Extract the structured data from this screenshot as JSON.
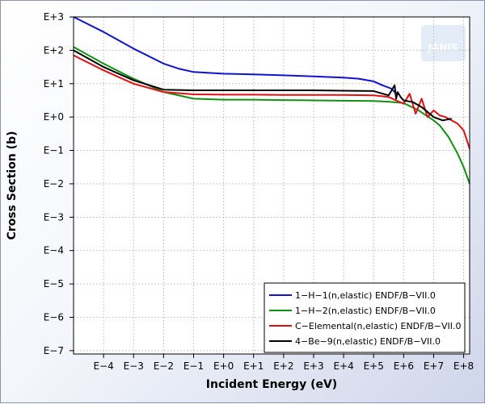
{
  "chart_data": {
    "type": "line",
    "title": "",
    "xlabel": "Incident Energy (eV)",
    "ylabel": "Cross Section (b)",
    "xscale": "log",
    "yscale": "log",
    "xlim_log10": [
      -5,
      8.2
    ],
    "ylim_log10": [
      -7.1,
      3
    ],
    "x_tick_labels": [
      "E−4",
      "E−3",
      "E−2",
      "E−1",
      "E+0",
      "E+1",
      "E+2",
      "E+3",
      "E+4",
      "E+5",
      "E+6",
      "E+7",
      "E+8"
    ],
    "x_tick_exponents": [
      -4,
      -3,
      -2,
      -1,
      0,
      1,
      2,
      3,
      4,
      5,
      6,
      7,
      8
    ],
    "y_tick_labels": [
      "E+3",
      "E+2",
      "E+1",
      "E+0",
      "E−1",
      "E−2",
      "E−3",
      "E−4",
      "E−5",
      "E−6",
      "E−7"
    ],
    "y_tick_exponents": [
      3,
      2,
      1,
      0,
      -1,
      -2,
      -3,
      -4,
      -5,
      -6,
      -7
    ],
    "grid": true,
    "legend_position": "bottom-right",
    "watermark": "JANIS",
    "series": [
      {
        "name": "1−H−1(n,elastic) ENDF/B−VII.0",
        "color": "#1010d0",
        "x_log10": [
          -5,
          -4,
          -3,
          -2,
          -1.5,
          -1,
          0,
          1,
          2,
          3,
          4,
          4.5,
          5,
          5.3,
          5.6,
          5.8
        ],
        "y_log10": [
          3,
          2.55,
          2.05,
          1.6,
          1.45,
          1.35,
          1.3,
          1.28,
          1.25,
          1.22,
          1.18,
          1.15,
          1.07,
          0.95,
          0.85,
          0.65
        ]
      },
      {
        "name": "1−H−2(n,elastic) ENDF/B−VII.0",
        "color": "#109010",
        "x_log10": [
          -5,
          -4,
          -3,
          -2,
          -1,
          0,
          1,
          2,
          3,
          4,
          5,
          5.5,
          6,
          6.5,
          7,
          7.2,
          7.5,
          7.8,
          8,
          8.2
        ],
        "y_log10": [
          2.1,
          1.6,
          1.15,
          0.75,
          0.55,
          0.52,
          0.52,
          0.51,
          0.5,
          0.49,
          0.48,
          0.46,
          0.42,
          0.2,
          -0.1,
          -0.25,
          -0.6,
          -1.1,
          -1.5,
          -2
        ]
      },
      {
        "name": "C−Elemental(n,elastic) ENDF/B−VII.0",
        "color": "#e01010",
        "x_log10": [
          -5,
          -4,
          -3,
          -2,
          -1,
          0,
          1,
          2,
          3,
          4,
          5,
          5.5,
          6,
          6.2,
          6.4,
          6.6,
          6.8,
          7,
          7.2,
          7.4,
          7.6,
          7.8,
          8,
          8.2
        ],
        "y_log10": [
          1.85,
          1.4,
          1.0,
          0.75,
          0.68,
          0.67,
          0.67,
          0.66,
          0.66,
          0.66,
          0.65,
          0.6,
          0.4,
          0.7,
          0.1,
          0.55,
          0.0,
          0.2,
          0.05,
          0.0,
          -0.1,
          -0.2,
          -0.4,
          -0.95
        ]
      },
      {
        "name": "4−Be−9(n,elastic) ENDF/B−VII.0",
        "color": "#000000",
        "x_log10": [
          -5,
          -4,
          -3,
          -2,
          -1,
          0,
          1,
          2,
          3,
          4,
          5,
          5.5,
          5.7,
          5.75,
          5.8,
          5.9,
          6,
          6.3,
          6.6,
          7,
          7.3,
          7.6
        ],
        "y_log10": [
          2,
          1.5,
          1.1,
          0.82,
          0.8,
          0.8,
          0.8,
          0.8,
          0.8,
          0.79,
          0.78,
          0.65,
          0.95,
          0.55,
          0.75,
          0.6,
          0.5,
          0.45,
          0.3,
          0.0,
          -0.1,
          -0.05
        ]
      }
    ]
  }
}
